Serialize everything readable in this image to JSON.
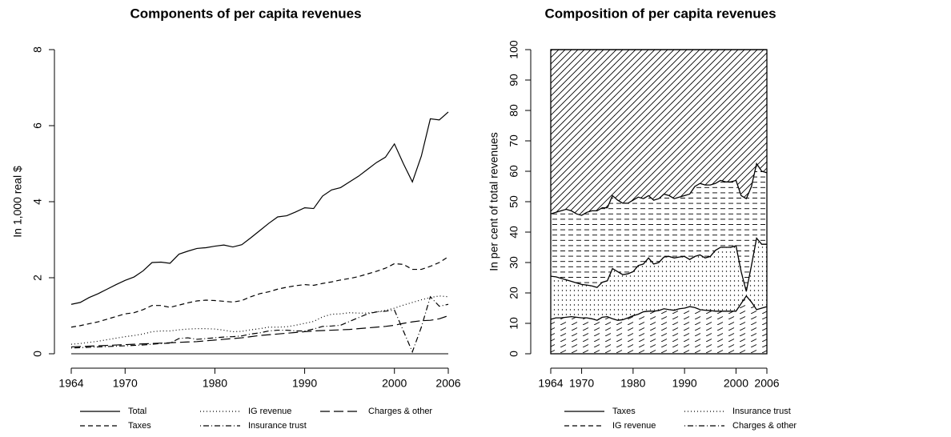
{
  "chart_data": [
    {
      "type": "line",
      "title": "Components of per capita revenues",
      "ylabel": "In 1,000 real $",
      "x": [
        1964,
        1965,
        1966,
        1967,
        1968,
        1969,
        1970,
        1971,
        1972,
        1973,
        1974,
        1975,
        1976,
        1977,
        1978,
        1979,
        1980,
        1981,
        1982,
        1983,
        1984,
        1985,
        1986,
        1987,
        1988,
        1989,
        1990,
        1991,
        1992,
        1993,
        1994,
        1995,
        1996,
        1997,
        1998,
        1999,
        2000,
        2001,
        2002,
        2003,
        2004,
        2005,
        2006
      ],
      "xlim": [
        1964,
        2006
      ],
      "xticks": [
        1964,
        1970,
        1980,
        1990,
        2000,
        2006
      ],
      "ylim": [
        0,
        8
      ],
      "yticks": [
        0,
        2,
        4,
        6,
        8
      ],
      "legend": "bottom",
      "series": [
        {
          "name": "Total",
          "color": "#000000",
          "linestyle": "solid",
          "values": [
            1.3,
            1.35,
            1.48,
            1.58,
            1.7,
            1.82,
            1.93,
            2.02,
            2.18,
            2.4,
            2.41,
            2.38,
            2.62,
            2.7,
            2.77,
            2.79,
            2.83,
            2.86,
            2.81,
            2.87,
            3.05,
            3.24,
            3.43,
            3.6,
            3.63,
            3.73,
            3.84,
            3.82,
            4.15,
            4.31,
            4.37,
            4.52,
            4.67,
            4.85,
            5.03,
            5.17,
            5.52,
            5.0,
            4.52,
            5.2,
            6.18,
            6.15,
            6.36
          ]
        },
        {
          "name": "Taxes",
          "color": "#000000",
          "linestyle": "dashed",
          "values": [
            0.7,
            0.74,
            0.79,
            0.84,
            0.91,
            0.98,
            1.05,
            1.08,
            1.16,
            1.27,
            1.27,
            1.22,
            1.28,
            1.34,
            1.39,
            1.41,
            1.4,
            1.38,
            1.36,
            1.4,
            1.5,
            1.58,
            1.63,
            1.7,
            1.75,
            1.79,
            1.82,
            1.8,
            1.85,
            1.89,
            1.94,
            1.98,
            2.03,
            2.1,
            2.17,
            2.25,
            2.37,
            2.35,
            2.22,
            2.22,
            2.3,
            2.4,
            2.55
          ]
        },
        {
          "name": "IG revenue",
          "color": "#000000",
          "linestyle": "dotted",
          "values": [
            0.25,
            0.27,
            0.3,
            0.33,
            0.37,
            0.41,
            0.45,
            0.48,
            0.52,
            0.58,
            0.6,
            0.6,
            0.63,
            0.65,
            0.66,
            0.66,
            0.65,
            0.62,
            0.58,
            0.59,
            0.63,
            0.66,
            0.7,
            0.7,
            0.71,
            0.75,
            0.8,
            0.85,
            0.97,
            1.04,
            1.05,
            1.08,
            1.07,
            1.07,
            1.1,
            1.14,
            1.2,
            1.28,
            1.35,
            1.42,
            1.48,
            1.52,
            1.5
          ]
        },
        {
          "name": "Insurance trust",
          "color": "#000000",
          "linestyle": "dotdash",
          "values": [
            0.15,
            0.16,
            0.17,
            0.18,
            0.19,
            0.2,
            0.21,
            0.22,
            0.23,
            0.25,
            0.27,
            0.28,
            0.4,
            0.42,
            0.38,
            0.4,
            0.42,
            0.44,
            0.45,
            0.47,
            0.52,
            0.55,
            0.6,
            0.62,
            0.62,
            0.6,
            0.6,
            0.65,
            0.72,
            0.73,
            0.75,
            0.85,
            0.95,
            1.05,
            1.1,
            1.12,
            1.15,
            0.6,
            0.05,
            0.7,
            1.5,
            1.25,
            1.3
          ]
        },
        {
          "name": "Charges & other",
          "color": "#000000",
          "linestyle": "longdash",
          "values": [
            0.18,
            0.19,
            0.2,
            0.21,
            0.22,
            0.23,
            0.24,
            0.25,
            0.26,
            0.27,
            0.28,
            0.29,
            0.3,
            0.31,
            0.32,
            0.34,
            0.36,
            0.38,
            0.4,
            0.42,
            0.45,
            0.48,
            0.5,
            0.52,
            0.54,
            0.56,
            0.58,
            0.6,
            0.61,
            0.62,
            0.63,
            0.64,
            0.66,
            0.68,
            0.7,
            0.72,
            0.75,
            0.8,
            0.84,
            0.87,
            0.88,
            0.92,
            1.0
          ]
        }
      ]
    },
    {
      "type": "area",
      "stacked": true,
      "title": "Composition of per capita revenues",
      "ylabel": "In per cent of total revenues",
      "x": [
        1964,
        1965,
        1966,
        1967,
        1968,
        1969,
        1970,
        1971,
        1972,
        1973,
        1974,
        1975,
        1976,
        1977,
        1978,
        1979,
        1980,
        1981,
        1982,
        1983,
        1984,
        1985,
        1986,
        1987,
        1988,
        1989,
        1990,
        1991,
        1992,
        1993,
        1994,
        1995,
        1996,
        1997,
        1998,
        1999,
        2000,
        2001,
        2002,
        2003,
        2004,
        2005,
        2006
      ],
      "xlim": [
        1964,
        2006
      ],
      "xticks": [
        1964,
        1970,
        1980,
        1990,
        2000,
        2006
      ],
      "ylim": [
        0,
        100
      ],
      "yticks": [
        0,
        10,
        20,
        30,
        40,
        50,
        60,
        70,
        80,
        90,
        100
      ],
      "legend": "bottom",
      "series": [
        {
          "name": "Taxes",
          "color": "#000000",
          "linestyle": "solid",
          "pattern": "dashed-diagonal",
          "values": [
            11.3,
            11.8,
            11.8,
            12.0,
            12.2,
            12.0,
            11.8,
            11.8,
            11.5,
            11.0,
            12.0,
            12.2,
            11.5,
            11.0,
            11.2,
            11.8,
            12.5,
            13.0,
            13.8,
            14.0,
            14.0,
            14.2,
            14.8,
            14.5,
            14.3,
            14.8,
            15.0,
            15.5,
            15.2,
            14.5,
            14.3,
            14.2,
            14.0,
            14.0,
            14.0,
            14.0,
            14.0,
            16.5,
            19.0,
            17.0,
            14.5,
            15.0,
            15.5
          ]
        },
        {
          "name": "Insurance trust",
          "color": "#000000",
          "linestyle": "dotted",
          "pattern": "dots",
          "values": [
            14.2,
            13.5,
            13.0,
            12.3,
            11.6,
            11.3,
            11.0,
            10.8,
            10.8,
            10.8,
            11.5,
            11.8,
            16.5,
            16.0,
            14.8,
            14.5,
            14.5,
            16.0,
            15.7,
            17.5,
            15.5,
            15.8,
            17.0,
            17.5,
            17.2,
            17.0,
            17.0,
            15.5,
            16.8,
            18.0,
            17.2,
            17.8,
            20.0,
            21.0,
            21.0,
            21.0,
            21.5,
            10.5,
            1.5,
            12.0,
            23.5,
            21.0,
            20.5
          ]
        },
        {
          "name": "IG revenue",
          "color": "#000000",
          "linestyle": "dashed",
          "pattern": "dashed-horizontal",
          "values": [
            20.5,
            21.2,
            22.2,
            23.2,
            23.2,
            22.7,
            22.7,
            23.9,
            24.7,
            25.2,
            24.5,
            24.0,
            24.0,
            23.5,
            23.5,
            23.2,
            23.5,
            22.5,
            21.5,
            20.5,
            21.0,
            21.0,
            20.7,
            20.0,
            19.5,
            19.7,
            20.0,
            21.5,
            23.0,
            23.5,
            24.0,
            23.5,
            22.0,
            22.0,
            21.5,
            21.5,
            21.5,
            25.0,
            30.5,
            26.0,
            24.5,
            24.0,
            23.5
          ]
        },
        {
          "name": "Charges & other",
          "color": "#000000",
          "linestyle": "dotdash",
          "pattern": "diagonal",
          "values": [
            54.0,
            53.5,
            53.0,
            52.5,
            53.0,
            54.0,
            54.5,
            53.5,
            53.0,
            53.0,
            52.0,
            52.0,
            48.0,
            49.5,
            50.5,
            50.5,
            49.5,
            48.5,
            49.0,
            48.0,
            49.5,
            49.0,
            47.5,
            48.0,
            49.0,
            48.5,
            48.0,
            47.5,
            45.0,
            44.0,
            44.5,
            44.5,
            44.0,
            43.0,
            43.5,
            43.5,
            43.0,
            48.0,
            49.0,
            45.0,
            37.5,
            40.0,
            40.5
          ]
        }
      ],
      "legend_order": [
        0,
        2,
        1,
        3
      ]
    }
  ]
}
